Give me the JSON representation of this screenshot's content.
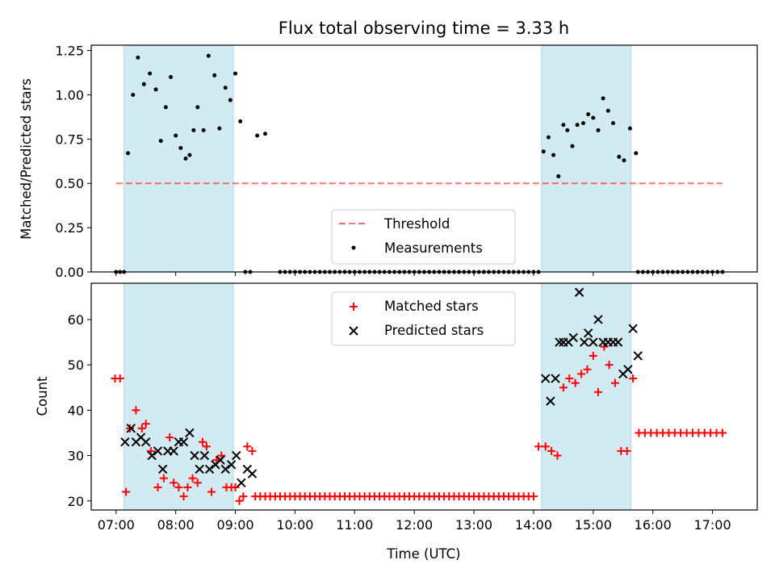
{
  "colors": {
    "band": "#add8e6",
    "threshold": "#ff0000",
    "measurement": "#000000",
    "matched": "#ff0000",
    "predicted": "#000000"
  },
  "chart_data": [
    {
      "type": "scatter",
      "title": "Flux total observing time = 3.33 h",
      "xlabel": "",
      "ylabel": "Matched/Predicted stars",
      "xlim": [
        "06:35",
        "17:45"
      ],
      "ylim": [
        0,
        1.28
      ],
      "yticks": [
        "0.00",
        "0.25",
        "0.50",
        "0.75",
        "1.00",
        "1.25"
      ],
      "shaded_intervals": [
        [
          "07:08",
          "08:58"
        ],
        [
          "14:08",
          "15:38"
        ]
      ],
      "threshold": {
        "name": "Threshold",
        "value": 0.5,
        "x": [
          "07:00",
          "17:10"
        ]
      },
      "series": [
        {
          "name": "Measurements",
          "x": [
            "07:00",
            "07:04",
            "07:08",
            "07:12",
            "07:17",
            "07:22",
            "07:28",
            "07:34",
            "07:40",
            "07:45",
            "07:50",
            "07:55",
            "08:00",
            "08:05",
            "08:10",
            "08:14",
            "08:18",
            "08:22",
            "08:28",
            "08:33",
            "08:39",
            "08:44",
            "08:50",
            "08:55",
            "08:60",
            "09:05",
            "09:10",
            "09:15",
            "09:22",
            "09:30",
            "14:10",
            "14:15",
            "14:20",
            "14:25",
            "14:30",
            "14:34",
            "14:39",
            "14:44",
            "14:50",
            "14:55",
            "15:00",
            "15:05",
            "15:10",
            "15:15",
            "15:20",
            "15:26",
            "15:31",
            "15:37",
            "15:43"
          ],
          "y": [
            0.0,
            0.0,
            0.0,
            0.67,
            1.0,
            1.21,
            1.06,
            1.12,
            1.03,
            0.74,
            0.93,
            1.1,
            0.77,
            0.7,
            0.64,
            0.66,
            0.8,
            0.93,
            0.8,
            1.22,
            1.11,
            0.81,
            1.04,
            0.97,
            1.12,
            0.85,
            0.0,
            0.0,
            0.77,
            0.78,
            0.68,
            0.76,
            0.66,
            0.54,
            0.83,
            0.8,
            0.71,
            0.83,
            0.84,
            0.89,
            0.87,
            0.8,
            0.98,
            0.91,
            0.84,
            0.65,
            0.63,
            0.81,
            0.67
          ]
        },
        {
          "name": "",
          "x": [
            "09:45",
            "09:50",
            "09:55",
            "10:00",
            "10:05",
            "10:10",
            "10:15",
            "10:20",
            "10:25",
            "10:30",
            "10:35",
            "10:40",
            "10:45",
            "10:50",
            "10:55",
            "11:00",
            "11:05",
            "11:10",
            "11:15",
            "11:20",
            "11:25",
            "11:30",
            "11:35",
            "11:40",
            "11:45",
            "11:50",
            "11:55",
            "12:00",
            "12:05",
            "12:10",
            "12:15",
            "12:20",
            "12:25",
            "12:30",
            "12:35",
            "12:40",
            "12:45",
            "12:50",
            "12:55",
            "13:00",
            "13:05",
            "13:10",
            "13:15",
            "13:20",
            "13:25",
            "13:30",
            "13:35",
            "13:40",
            "13:45",
            "13:50",
            "13:55",
            "14:00",
            "14:05",
            "15:45",
            "15:50",
            "15:55",
            "16:00",
            "16:05",
            "16:10",
            "16:15",
            "16:20",
            "16:25",
            "16:30",
            "16:35",
            "16:40",
            "16:45",
            "16:50",
            "16:55",
            "17:00",
            "17:05",
            "17:10"
          ],
          "y_constant": 0.0
        }
      ]
    },
    {
      "type": "scatter",
      "xlabel": "Time (UTC)",
      "ylabel": "Count",
      "xlim": [
        "06:35",
        "17:45"
      ],
      "ylim": [
        18,
        68
      ],
      "xticks": [
        "07:00",
        "08:00",
        "09:00",
        "10:00",
        "11:00",
        "12:00",
        "13:00",
        "14:00",
        "15:00",
        "16:00",
        "17:00"
      ],
      "yticks": [
        "20",
        "30",
        "40",
        "50",
        "60"
      ],
      "shaded_intervals": [
        [
          "07:08",
          "08:58"
        ],
        [
          "14:08",
          "15:38"
        ]
      ],
      "series": [
        {
          "name": "Matched stars",
          "x": [
            "06:59",
            "07:04",
            "07:10",
            "07:14",
            "07:20",
            "07:26",
            "07:30",
            "07:35",
            "07:42",
            "07:48",
            "07:54",
            "07:58",
            "08:03",
            "08:08",
            "08:12",
            "08:17",
            "08:22",
            "08:27",
            "08:31",
            "08:36",
            "08:41",
            "08:46",
            "08:51",
            "08:56",
            "09:00",
            "09:04",
            "09:08",
            "09:12",
            "09:17",
            "14:05",
            "14:12",
            "14:18",
            "14:24",
            "14:30",
            "14:36",
            "14:42",
            "14:48",
            "14:54",
            "15:00",
            "15:05",
            "15:11",
            "15:16",
            "15:22",
            "15:28",
            "15:34",
            "15:40",
            "15:46",
            "15:52"
          ],
          "y": [
            47,
            47,
            22,
            36,
            40,
            36,
            37,
            31,
            23,
            25,
            34,
            24,
            23,
            21,
            23,
            25,
            24,
            33,
            32,
            22,
            29,
            30,
            23,
            23,
            23,
            20,
            21,
            32,
            31,
            32,
            32,
            31,
            30,
            45,
            47,
            46,
            48,
            49,
            52,
            44,
            54,
            50,
            46,
            31,
            31,
            47,
            35,
            35
          ],
          "extra_constant_21_x": [
            "09:20",
            "09:25",
            "09:30",
            "09:35",
            "09:40",
            "09:45",
            "09:50",
            "09:55",
            "10:00",
            "10:05",
            "10:10",
            "10:15",
            "10:20",
            "10:25",
            "10:30",
            "10:35",
            "10:40",
            "10:45",
            "10:50",
            "10:55",
            "11:00",
            "11:05",
            "11:10",
            "11:15",
            "11:20",
            "11:25",
            "11:30",
            "11:35",
            "11:40",
            "11:45",
            "11:50",
            "11:55",
            "12:00",
            "12:05",
            "12:10",
            "12:15",
            "12:20",
            "12:25",
            "12:30",
            "12:35",
            "12:40",
            "12:45",
            "12:50",
            "12:55",
            "13:00",
            "13:05",
            "13:10",
            "13:15",
            "13:20",
            "13:25",
            "13:30",
            "13:35",
            "13:40",
            "13:45",
            "13:50",
            "13:55",
            "14:00"
          ],
          "extra_constant_35_x": [
            "15:58",
            "16:04",
            "16:10",
            "16:16",
            "16:22",
            "16:28",
            "16:34",
            "16:40",
            "16:46",
            "16:52",
            "16:58",
            "17:04",
            "17:10"
          ]
        },
        {
          "name": "Predicted stars",
          "x": [
            "07:09",
            "07:15",
            "07:20",
            "07:25",
            "07:30",
            "07:36",
            "07:42",
            "07:47",
            "07:52",
            "07:58",
            "08:03",
            "08:08",
            "08:14",
            "08:19",
            "08:24",
            "08:29",
            "08:34",
            "08:40",
            "08:45",
            "08:50",
            "08:56",
            "09:01",
            "09:06",
            "09:12",
            "09:17",
            "14:12",
            "14:17",
            "14:22",
            "14:26",
            "14:30",
            "14:35",
            "14:40",
            "14:46",
            "14:51",
            "14:55",
            "15:00",
            "15:05",
            "15:10",
            "15:15",
            "15:20",
            "15:25",
            "15:30",
            "15:35",
            "15:40",
            "15:45"
          ],
          "y": [
            33,
            36,
            33,
            34,
            33,
            30,
            31,
            27,
            31,
            31,
            33,
            33,
            35,
            30,
            27,
            30,
            27,
            28,
            29,
            27,
            28,
            30,
            24,
            27,
            26,
            47,
            42,
            47,
            55,
            55,
            55,
            56,
            66,
            55,
            57,
            55,
            60,
            55,
            55,
            55,
            55,
            48,
            49,
            58,
            52
          ]
        }
      ]
    }
  ]
}
